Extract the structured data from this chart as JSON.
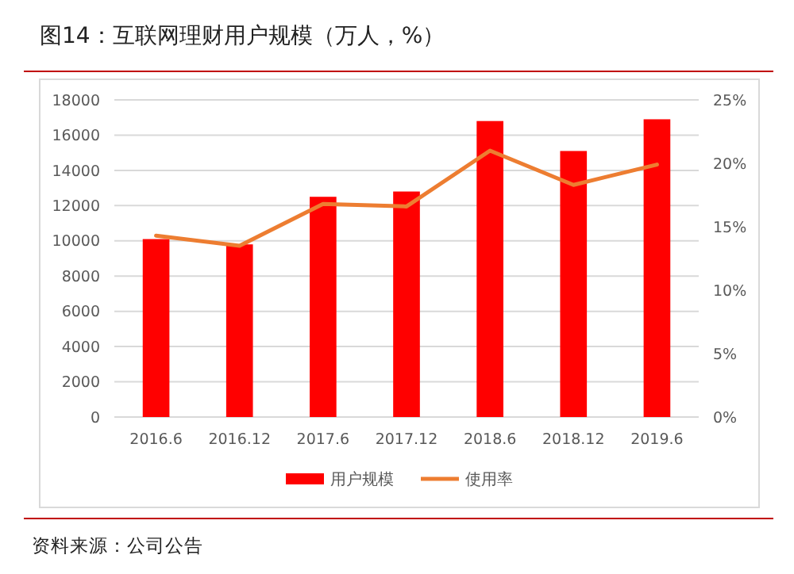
{
  "chart_data": {
    "type": "bar",
    "title": "图14：互联网理财用户规模（万人，%）",
    "categories": [
      "2016.6",
      "2016.12",
      "2017.6",
      "2017.12",
      "2018.6",
      "2018.12",
      "2019.6"
    ],
    "series": [
      {
        "name": "用户规模",
        "color": "#ff0000",
        "values": [
          10100,
          9800,
          12500,
          12800,
          16800,
          15100,
          16900
        ]
      },
      {
        "name": "使用率",
        "type": "line",
        "axis": "y2",
        "color": "#ed7d31",
        "values": [
          14.3,
          13.5,
          16.8,
          16.6,
          21.0,
          18.3,
          19.9
        ]
      }
    ],
    "ylim": [
      0,
      18000
    ],
    "yticks": [
      0,
      2000,
      4000,
      6000,
      8000,
      10000,
      12000,
      14000,
      16000,
      18000
    ],
    "y2lim": [
      0,
      25
    ],
    "y2ticks": [
      {
        "value": 0,
        "label": "0%"
      },
      {
        "value": 5,
        "label": "5%"
      },
      {
        "value": 10,
        "label": "10%"
      },
      {
        "value": 15,
        "label": "15%"
      },
      {
        "value": 20,
        "label": "20%"
      },
      {
        "value": 25,
        "label": "25%"
      }
    ],
    "grid": "y",
    "legend": "bottom",
    "annotations": [
      "资料来源：公司公告"
    ]
  }
}
